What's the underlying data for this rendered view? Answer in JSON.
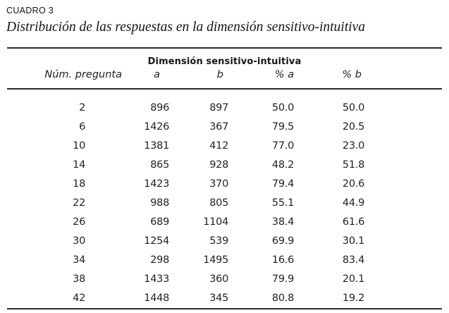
{
  "kicker": "CUADRO 3",
  "title": "Distribución de las respuestas en la dimensión sensitivo-intuitiva",
  "table": {
    "group_header": "Dimensión sensitivo-intuitiva",
    "columns": [
      "Núm. pregunta",
      "a",
      "b",
      "% a",
      "% b"
    ],
    "column_keys": [
      "num-pregunta",
      "a",
      "b",
      "pct-a",
      "pct-b"
    ],
    "rows": [
      [
        "2",
        "896",
        "897",
        "50.0",
        "50.0"
      ],
      [
        "6",
        "1426",
        "367",
        "79.5",
        "20.5"
      ],
      [
        "10",
        "1381",
        "412",
        "77.0",
        "23.0"
      ],
      [
        "14",
        "865",
        "928",
        "48.2",
        "51.8"
      ],
      [
        "18",
        "1423",
        "370",
        "79.4",
        "20.6"
      ],
      [
        "22",
        "988",
        "805",
        "55.1",
        "44.9"
      ],
      [
        "26",
        "689",
        "1104",
        "38.4",
        "61.6"
      ],
      [
        "30",
        "1254",
        "539",
        "69.9",
        "30.1"
      ],
      [
        "34",
        "298",
        "1495",
        "16.6",
        "83.4"
      ],
      [
        "38",
        "1433",
        "360",
        "79.9",
        "20.1"
      ],
      [
        "42",
        "1448",
        "345",
        "80.8",
        "19.2"
      ]
    ],
    "text_color": "#222222",
    "rule_color": "#2a2a2a"
  }
}
